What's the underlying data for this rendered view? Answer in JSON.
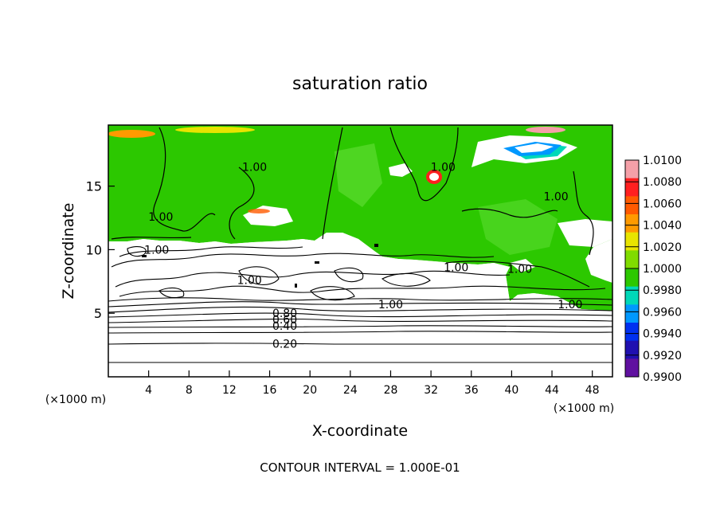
{
  "chart_data": {
    "type": "heatmap",
    "title": "saturation ratio",
    "xlabel": "X-coordinate",
    "ylabel": "Z-coordinate",
    "x_unit_left": "(×1000 m)",
    "x_unit_right": "(×1000 m)",
    "xlim": [
      0,
      50
    ],
    "ylim": [
      0,
      19.8
    ],
    "x_ticks": [
      4,
      8,
      12,
      16,
      20,
      24,
      28,
      32,
      36,
      40,
      44,
      48
    ],
    "y_ticks": [
      5,
      10,
      15
    ],
    "footer": "CONTOUR INTERVAL = 1.000E-01",
    "colorbar": {
      "range": [
        0.99,
        1.01
      ],
      "labels": [
        "1.0100",
        "1.0080",
        "1.0060",
        "1.0040",
        "1.0020",
        "1.0000",
        "0.9980",
        "0.9960",
        "0.9940",
        "0.9920",
        "0.9900"
      ],
      "colors": [
        "#f4a0a8",
        "#ff2020",
        "#ff5a00",
        "#ff9a00",
        "#e8e400",
        "#80dc00",
        "#2cc800",
        "#00d8b8",
        "#0098ff",
        "#0030f0",
        "#2010b0",
        "#6010a0"
      ]
    },
    "contour_levels_labelled": [
      {
        "label": "0.20",
        "z": 2.7
      },
      {
        "label": "0.40",
        "z": 4.0
      },
      {
        "label": "0.60",
        "z": 4.5
      },
      {
        "label": "0.80",
        "z": 5.0
      },
      {
        "label": "1.00",
        "z": 10.0
      }
    ],
    "contour_labels": [
      {
        "text": "0.20",
        "x": 17.5,
        "z": 2.6
      },
      {
        "text": "0.40",
        "x": 17.5,
        "z": 4.0
      },
      {
        "text": "0.60",
        "x": 17.5,
        "z": 4.5
      },
      {
        "text": "0.80",
        "x": 17.5,
        "z": 5.0
      },
      {
        "text": "1.00",
        "x": 14.0,
        "z": 7.6
      },
      {
        "text": "1.00",
        "x": 28.0,
        "z": 5.7
      },
      {
        "text": "1.00",
        "x": 4.8,
        "z": 10.0
      },
      {
        "text": "1.00",
        "x": 5.2,
        "z": 12.6
      },
      {
        "text": "1.00",
        "x": 14.5,
        "z": 16.5
      },
      {
        "text": "1.00",
        "x": 33.2,
        "z": 16.5
      },
      {
        "text": "1.00",
        "x": 34.5,
        "z": 8.6
      },
      {
        "text": "1.00",
        "x": 44.4,
        "z": 14.2
      },
      {
        "text": "1.00",
        "x": 45.8,
        "z": 5.7
      },
      {
        "text": "1.00",
        "x": 40.8,
        "z": 8.5
      }
    ]
  }
}
